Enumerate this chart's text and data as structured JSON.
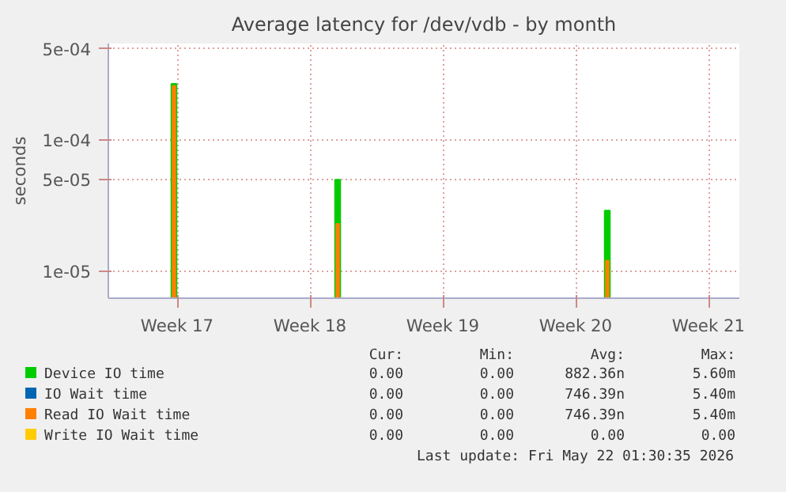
{
  "chart_data": {
    "type": "bar",
    "title": "Average latency for /dev/vdb - by month",
    "ylabel": "seconds",
    "log": "y",
    "grid": true,
    "legend": "bottom",
    "xlim": [
      "2026-04-16T09:00",
      "2026-05-19T15:00"
    ],
    "xticks": [
      {
        "value": "2026-04-20",
        "label": "Week 17"
      },
      {
        "value": "2026-04-27",
        "label": "Week 18"
      },
      {
        "value": "2026-05-04",
        "label": "Week 19"
      },
      {
        "value": "2026-05-11",
        "label": "Week 20"
      },
      {
        "value": "2026-05-18",
        "label": "Week 21"
      }
    ],
    "ylim": [
      6.2e-06,
      0.00055
    ],
    "yticks": [
      {
        "value": 1e-05,
        "label": "1e-05"
      },
      {
        "value": 5e-05,
        "label": "5e-05"
      },
      {
        "value": 0.0001,
        "label": "1e-04"
      },
      {
        "value": 0.0005,
        "label": "5e-04"
      }
    ],
    "series": [
      {
        "name": "Device IO time",
        "color": "#00cc00",
        "x": [
          "2026-04-19T20:00",
          "2026-04-28T11:00",
          "2026-05-12T16:00"
        ],
        "values": [
          0.00027,
          5e-05,
          2.9e-05
        ]
      },
      {
        "name": "IO Wait time",
        "color": "#0066b3"
      },
      {
        "name": "Read IO Wait time",
        "color": "#ff8000",
        "x": [
          "2026-04-19T20:00",
          "2026-04-28T11:00",
          "2026-05-12T16:00"
        ],
        "values": [
          0.00026,
          2.3e-05,
          1.2e-05
        ]
      },
      {
        "name": "Write IO Wait time",
        "color": "#ffcc00"
      }
    ],
    "annotations": [
      "Cur:",
      "Min:",
      "Avg:",
      "Max:",
      "0.00",
      "0.00",
      "882.36n",
      "5.60m",
      "0.00",
      "0.00",
      "746.39n",
      "5.40m",
      "0.00",
      "0.00",
      "746.39n",
      "5.40m",
      "0.00",
      "0.00",
      "0.00",
      "0.00",
      "Last update: Fri May 22 01:30:35 2026"
    ]
  }
}
